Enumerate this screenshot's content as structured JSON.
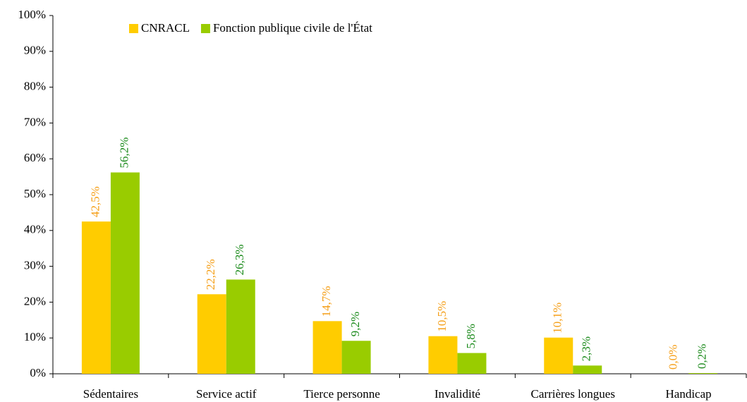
{
  "chart_data": {
    "type": "bar",
    "categories": [
      "Sédentaires",
      "Service actif",
      "Tierce personne",
      "Invalidité",
      "Carrières longues",
      "Handicap"
    ],
    "series": [
      {
        "name": "CNRACL",
        "color": "#ffcc00",
        "label_color": "#f5a01a",
        "values": [
          42.5,
          22.2,
          14.7,
          10.5,
          10.1,
          0.0
        ],
        "value_labels": [
          "42,5%",
          "22,2%",
          "14,7%",
          "10,5%",
          "10,1%",
          "0,0%"
        ]
      },
      {
        "name": "Fonction publique civile de l'État",
        "color": "#99cc00",
        "label_color": "#1e8c1e",
        "values": [
          56.2,
          26.3,
          9.2,
          5.8,
          2.3,
          0.2
        ],
        "value_labels": [
          "56,2%",
          "26,3%",
          "9,2%",
          "5,8%",
          "2,3%",
          "0,2%"
        ]
      }
    ],
    "ylim": [
      0,
      100
    ],
    "yticks": [
      {
        "value": 0,
        "label": "0%"
      },
      {
        "value": 10,
        "label": "10%"
      },
      {
        "value": 20,
        "label": "20%"
      },
      {
        "value": 30,
        "label": "30%"
      },
      {
        "value": 40,
        "label": "40%"
      },
      {
        "value": 50,
        "label": "50%"
      },
      {
        "value": 60,
        "label": "60%"
      },
      {
        "value": 70,
        "label": "70%"
      },
      {
        "value": 80,
        "label": "80%"
      },
      {
        "value": 90,
        "label": "90%"
      },
      {
        "value": 100,
        "label": "100%"
      }
    ],
    "grid": false,
    "legend": "top-left"
  }
}
